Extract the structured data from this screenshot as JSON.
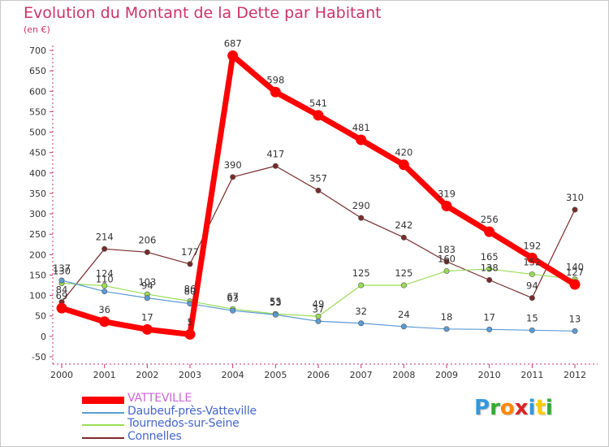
{
  "header": {
    "title": "Evolution du Montant de la Dette par Habitant",
    "unit": "(en €)"
  },
  "chart_data": {
    "type": "line",
    "title": "Evolution du Montant de la Dette par Habitant",
    "ylabel": "(en €)",
    "xlabel": "",
    "ylim": [
      -50,
      700
    ],
    "yticks": [
      -50,
      0,
      50,
      100,
      150,
      200,
      250,
      300,
      350,
      400,
      450,
      500,
      550,
      600,
      650,
      700
    ],
    "categories": [
      "2000",
      "2001",
      "2002",
      "2003",
      "2004",
      "2005",
      "2006",
      "2007",
      "2008",
      "2009",
      "2010",
      "2011",
      "2012"
    ],
    "grid": false,
    "legend_position": "bottom-left",
    "series": [
      {
        "name": "VATTEVILLE",
        "color": "#ff0000",
        "values": [
          69,
          36,
          17,
          5,
          687,
          598,
          541,
          481,
          420,
          319,
          256,
          192,
          127
        ]
      },
      {
        "name": "Daubeuf-près-Vatteville",
        "color": "#5b9bd5",
        "values": [
          137,
          110,
          94,
          80,
          63,
          53,
          37,
          32,
          24,
          18,
          17,
          15,
          13
        ]
      },
      {
        "name": "Tournedos-sur-Seine",
        "color": "#99dd55",
        "values": [
          130,
          124,
          103,
          86,
          67,
          55,
          49,
          125,
          125,
          160,
          165,
          152,
          140
        ]
      },
      {
        "name": "Connelles",
        "color": "#7a2a2a",
        "values": [
          84,
          214,
          206,
          177,
          390,
          417,
          357,
          290,
          242,
          183,
          138,
          94,
          310
        ]
      }
    ],
    "data_labels": [
      [
        "69",
        "36",
        "17",
        "5",
        "687",
        "598",
        "541",
        "481",
        "420",
        "319",
        "256",
        "192",
        "127"
      ],
      [
        "137",
        "110",
        "94",
        "80",
        "63",
        "53",
        "37",
        "32",
        "24",
        "18",
        "17",
        "15",
        "13"
      ],
      [
        "130",
        "124",
        "103",
        "86",
        "67",
        "55",
        "49",
        "125",
        "125",
        "160",
        "165",
        "152",
        "140"
      ],
      [
        "84",
        "214",
        "206",
        "177",
        "390",
        "417",
        "357",
        "290",
        "242",
        "183",
        "138",
        "94",
        "310"
      ]
    ]
  },
  "legend": {
    "items": [
      {
        "label": "VATTEVILLE",
        "color": "#ff0000",
        "text_color": "#cc66dd"
      },
      {
        "label": "Daubeuf-près-Vatteville",
        "color": "#5b9bd5",
        "text_color": "#4466cc"
      },
      {
        "label": "Tournedos-sur-Seine",
        "color": "#99dd55",
        "text_color": "#4466cc"
      },
      {
        "label": "Connelles",
        "color": "#7a2a2a",
        "text_color": "#4466cc"
      }
    ]
  },
  "logo": {
    "letters": [
      "P",
      "r",
      "o",
      "x",
      "i",
      "t",
      "i"
    ],
    "colors": [
      "#3399dd",
      "#33aa33",
      "#ff8800",
      "#dd2222",
      "#3399dd",
      "#ffcc00",
      "#33aa33"
    ]
  }
}
